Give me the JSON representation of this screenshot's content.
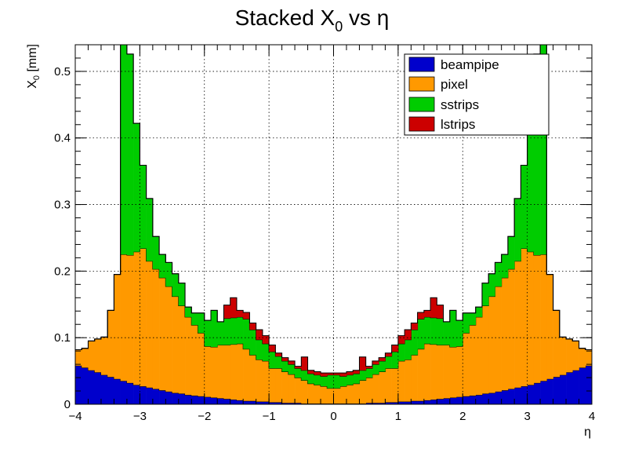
{
  "chart_data": {
    "type": "stacked-histogram",
    "title": "Stacked X₀ vs   η",
    "title_parts": {
      "main": "Stacked X",
      "sub": "0",
      "rest": " vs   η"
    },
    "xlabel": "η",
    "ylabel": "X₀ [mm]",
    "ylabel_parts": {
      "main": "X",
      "sub": "0",
      "rest": " [mm]"
    },
    "xlim": [
      -4,
      4
    ],
    "ylim": [
      0,
      0.54
    ],
    "xticks": [
      -4,
      -3,
      -2,
      -1,
      0,
      1,
      2,
      3,
      4
    ],
    "xtick_labels": [
      "−4",
      "−3",
      "−2",
      "−1",
      "0",
      "1",
      "2",
      "3",
      "4"
    ],
    "yticks": [
      0,
      0.1,
      0.2,
      0.3,
      0.4,
      0.5
    ],
    "ytick_labels": [
      "0",
      "0.1",
      "0.2",
      "0.3",
      "0.4",
      "0.5"
    ],
    "grid": true,
    "legend_position": "top-right",
    "bins": 80,
    "series": [
      {
        "name": "beampipe",
        "color": "#0000cc",
        "values": [
          0.058,
          0.055,
          0.051,
          0.048,
          0.044,
          0.041,
          0.038,
          0.035,
          0.032,
          0.029,
          0.027,
          0.025,
          0.023,
          0.021,
          0.019,
          0.017,
          0.016,
          0.014,
          0.013,
          0.012,
          0.011,
          0.01,
          0.009,
          0.008,
          0.007,
          0.006,
          0.005,
          0.005,
          0.004,
          0.004,
          0.003,
          0.003,
          0.002,
          0.002,
          0.002,
          0.001,
          0.001,
          0.001,
          0.001,
          0.001,
          0.001,
          0.001,
          0.001,
          0.001,
          0.001,
          0.002,
          0.002,
          0.002,
          0.003,
          0.003,
          0.004,
          0.004,
          0.005,
          0.005,
          0.006,
          0.007,
          0.008,
          0.009,
          0.01,
          0.011,
          0.012,
          0.013,
          0.014,
          0.016,
          0.017,
          0.019,
          0.021,
          0.023,
          0.025,
          0.027,
          0.029,
          0.032,
          0.035,
          0.038,
          0.041,
          0.044,
          0.048,
          0.051,
          0.055,
          0.058
        ]
      },
      {
        "name": "pixel",
        "color": "#ff9900",
        "values": [
          0.024,
          0.029,
          0.044,
          0.05,
          0.057,
          0.1,
          0.157,
          0.19,
          0.192,
          0.2,
          0.207,
          0.19,
          0.18,
          0.169,
          0.158,
          0.145,
          0.132,
          0.117,
          0.106,
          0.095,
          0.076,
          0.076,
          0.08,
          0.081,
          0.083,
          0.085,
          0.078,
          0.069,
          0.063,
          0.061,
          0.051,
          0.051,
          0.047,
          0.043,
          0.038,
          0.035,
          0.03,
          0.028,
          0.026,
          0.023,
          0.023,
          0.026,
          0.028,
          0.03,
          0.035,
          0.038,
          0.043,
          0.047,
          0.051,
          0.051,
          0.061,
          0.063,
          0.069,
          0.078,
          0.085,
          0.083,
          0.081,
          0.08,
          0.076,
          0.076,
          0.095,
          0.106,
          0.117,
          0.132,
          0.145,
          0.158,
          0.169,
          0.18,
          0.19,
          0.207,
          0.2,
          0.192,
          0.19,
          0.157,
          0.1,
          0.057,
          0.05,
          0.044,
          0.029,
          0.024
        ]
      },
      {
        "name": "sstrips",
        "color": "#00cc00",
        "values": [
          0,
          0,
          0,
          0,
          0,
          0,
          0,
          0.36,
          0.302,
          0.193,
          0.125,
          0.094,
          0.049,
          0.035,
          0.036,
          0.034,
          0.034,
          0.015,
          0.018,
          0.03,
          0.039,
          0.055,
          0.035,
          0.04,
          0.04,
          0.04,
          0.045,
          0.038,
          0.03,
          0.026,
          0.025,
          0.018,
          0.016,
          0.015,
          0.014,
          0.015,
          0.015,
          0.015,
          0.015,
          0.02,
          0.02,
          0.015,
          0.015,
          0.015,
          0.015,
          0.014,
          0.015,
          0.016,
          0.018,
          0.025,
          0.026,
          0.03,
          0.038,
          0.045,
          0.04,
          0.04,
          0.04,
          0.035,
          0.055,
          0.039,
          0.03,
          0.018,
          0.015,
          0.034,
          0.034,
          0.036,
          0.035,
          0.049,
          0.094,
          0.125,
          0.193,
          0.302,
          0.36,
          0,
          0,
          0,
          0,
          0,
          0,
          0
        ]
      },
      {
        "name": "lstrips",
        "color": "#cc0000",
        "values": [
          0,
          0,
          0,
          0,
          0,
          0,
          0,
          0,
          0,
          0,
          0,
          0,
          0,
          0,
          0,
          0,
          0,
          0,
          0,
          0,
          0,
          0,
          0,
          0.02,
          0.03,
          0.01,
          0.01,
          0.01,
          0.015,
          0.012,
          0.01,
          0.005,
          0.005,
          0.005,
          0.003,
          0.02,
          0.005,
          0.005,
          0.005,
          0.003,
          0.003,
          0.005,
          0.005,
          0.005,
          0.02,
          0.003,
          0.005,
          0.005,
          0.005,
          0.01,
          0.012,
          0.015,
          0.01,
          0.01,
          0.01,
          0.03,
          0.02,
          0,
          0,
          0,
          0,
          0,
          0,
          0,
          0,
          0,
          0,
          0,
          0,
          0,
          0,
          0,
          0,
          0,
          0,
          0,
          0,
          0,
          0,
          0
        ]
      }
    ]
  }
}
